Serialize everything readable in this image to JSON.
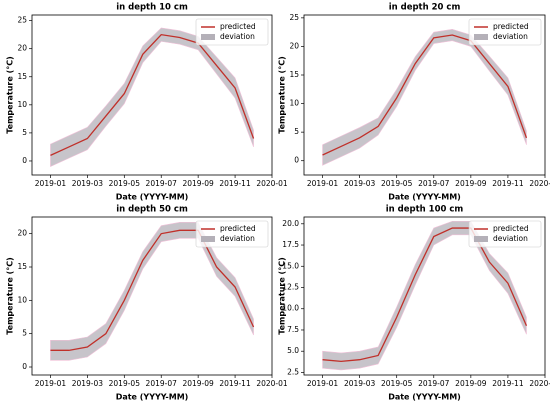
{
  "chart_data": [
    {
      "type": "line",
      "title": "in depth 10 cm",
      "xlabel": "Date (YYYY-MM)",
      "ylabel": "Temperature (°C)",
      "x": [
        "2019-01",
        "2019-02",
        "2019-03",
        "2019-04",
        "2019-05",
        "2019-06",
        "2019-07",
        "2019-08",
        "2019-09",
        "2019-10",
        "2019-11",
        "2019-12"
      ],
      "series": [
        {
          "name": "predicted",
          "color": "#c0302a",
          "values": [
            1,
            2.5,
            4,
            8,
            12,
            19,
            22.5,
            22,
            21,
            17,
            13,
            4
          ]
        },
        {
          "name": "deviation",
          "color": "#b4b0b8",
          "values": [
            2,
            2,
            2,
            1.8,
            1.8,
            1.5,
            1.2,
            1.2,
            1.2,
            1.5,
            1.8,
            1.5
          ]
        }
      ],
      "xlim": [
        "2018-12",
        "2020-01"
      ],
      "xticks": [
        "2019-01",
        "2019-03",
        "2019-05",
        "2019-07",
        "2019-09",
        "2019-11",
        "2020-01"
      ],
      "ylim": [
        -2.5,
        26
      ],
      "yticks": [
        0,
        5,
        10,
        15,
        20,
        25
      ],
      "legend": "upper right"
    },
    {
      "type": "line",
      "title": "in depth 20 cm",
      "xlabel": "Date (YYYY-MM)",
      "ylabel": "Temperature (°C)",
      "x": [
        "2019-01",
        "2019-02",
        "2019-03",
        "2019-04",
        "2019-05",
        "2019-06",
        "2019-07",
        "2019-08",
        "2019-09",
        "2019-10",
        "2019-11",
        "2019-12"
      ],
      "series": [
        {
          "name": "predicted",
          "color": "#c0302a",
          "values": [
            1,
            2.5,
            4,
            6,
            11,
            17,
            21.5,
            22,
            21,
            17,
            13,
            4
          ]
        },
        {
          "name": "deviation",
          "color": "#b4b0b8",
          "values": [
            1.8,
            1.8,
            1.8,
            1.5,
            1.5,
            1.2,
            1,
            1,
            1,
            1.3,
            1.5,
            1.2
          ]
        }
      ],
      "xlim": [
        "2018-12",
        "2020-01"
      ],
      "xticks": [
        "2019-01",
        "2019-03",
        "2019-05",
        "2019-07",
        "2019-09",
        "2019-11",
        "2020-01"
      ],
      "ylim": [
        -2.5,
        25.5
      ],
      "yticks": [
        0,
        5,
        10,
        15,
        20,
        25
      ],
      "legend": "upper right"
    },
    {
      "type": "line",
      "title": "in depth 50 cm",
      "xlabel": "Date (YYYY-MM)",
      "ylabel": "Temperature (°C)",
      "x": [
        "2019-01",
        "2019-02",
        "2019-03",
        "2019-04",
        "2019-05",
        "2019-06",
        "2019-07",
        "2019-08",
        "2019-09",
        "2019-10",
        "2019-11",
        "2019-12"
      ],
      "series": [
        {
          "name": "predicted",
          "color": "#c0302a",
          "values": [
            2.5,
            2.5,
            3,
            5,
            10,
            16,
            20,
            20.5,
            20.5,
            15,
            12,
            6
          ]
        },
        {
          "name": "deviation",
          "color": "#b4b0b8",
          "values": [
            1.5,
            1.5,
            1.5,
            1.5,
            1.5,
            1.3,
            1.2,
            1.2,
            1.2,
            1.4,
            1.4,
            1.2
          ]
        }
      ],
      "xlim": [
        "2018-12",
        "2020-01"
      ],
      "xticks": [
        "2019-01",
        "2019-03",
        "2019-05",
        "2019-07",
        "2019-09",
        "2019-11",
        "2020-01"
      ],
      "ylim": [
        -1.2,
        22.5
      ],
      "yticks": [
        0,
        5,
        10,
        15,
        20
      ],
      "legend": "upper right"
    },
    {
      "type": "line",
      "title": "in depth 100 cm",
      "xlabel": "Date (YYYY-MM)",
      "ylabel": "Temperature (°C)",
      "x": [
        "2019-01",
        "2019-02",
        "2019-03",
        "2019-04",
        "2019-05",
        "2019-06",
        "2019-07",
        "2019-08",
        "2019-09",
        "2019-10",
        "2019-11",
        "2019-12"
      ],
      "series": [
        {
          "name": "predicted",
          "color": "#c0302a",
          "values": [
            4,
            3.8,
            4,
            4.5,
            9,
            14,
            18.5,
            19.5,
            19.5,
            15.5,
            13,
            8
          ]
        },
        {
          "name": "deviation",
          "color": "#b4b0b8",
          "values": [
            1,
            1,
            1,
            1,
            1.2,
            1.2,
            1,
            0.8,
            0.8,
            1,
            1.2,
            1
          ]
        }
      ],
      "xlim": [
        "2018-12",
        "2020-01"
      ],
      "xticks": [
        "2019-01",
        "2019-03",
        "2019-05",
        "2019-07",
        "2019-09",
        "2019-11",
        "2020-01"
      ],
      "ylim": [
        2.2,
        20.8
      ],
      "yticks": [
        {
          "value": 2.5,
          "label": "2.5"
        },
        {
          "value": 5,
          "label": "5.0"
        },
        {
          "value": 7.5,
          "label": "7.5"
        },
        {
          "value": 10,
          "label": "10.0"
        },
        {
          "value": 12.5,
          "label": "12.5"
        },
        {
          "value": 15,
          "label": "15.0"
        },
        {
          "value": 17.5,
          "label": "17.5"
        },
        {
          "value": 20,
          "label": "20.0"
        }
      ],
      "legend": "upper right"
    }
  ]
}
